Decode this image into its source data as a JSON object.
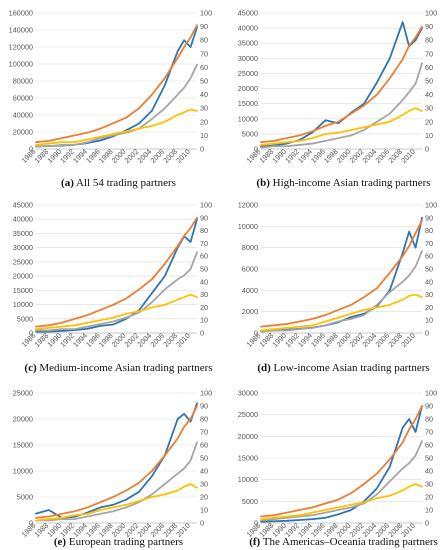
{
  "chart_data": [
    {
      "type": "line",
      "caption_letter": "(a)",
      "caption_text": "All 54 trading partners",
      "x": [
        1986,
        1988,
        1990,
        1992,
        1994,
        1996,
        1998,
        2000,
        2002,
        2004,
        2006,
        2008,
        2009,
        2010,
        2011
      ],
      "xticks": [
        1986,
        1988,
        1990,
        1992,
        1994,
        1996,
        1998,
        2000,
        2002,
        2004,
        2006,
        2008,
        2010
      ],
      "y_left": {
        "min": 0,
        "max": 160000,
        "ticks": [
          0,
          20000,
          40000,
          60000,
          80000,
          100000,
          120000,
          140000,
          160000
        ]
      },
      "y_right": {
        "min": 0,
        "max": 100,
        "ticks": [
          0,
          10,
          20,
          30,
          40,
          50,
          60,
          70,
          80,
          90,
          100
        ]
      },
      "series": [
        {
          "color": "#2e75b6",
          "axis": "left",
          "values": [
            3000,
            3500,
            4000,
            5000,
            7000,
            10000,
            15000,
            22000,
            30000,
            45000,
            75000,
            115000,
            128000,
            120000,
            143000
          ]
        },
        {
          "color": "#ed7d31",
          "axis": "right",
          "values": [
            5,
            6,
            8,
            10,
            12,
            15,
            19,
            23,
            30,
            40,
            52,
            67,
            75,
            82,
            91
          ]
        },
        {
          "color": "#a5a5a5",
          "axis": "right",
          "values": [
            2,
            2,
            3,
            3,
            5,
            8,
            10,
            12,
            15,
            22,
            30,
            40,
            45,
            52,
            62
          ]
        },
        {
          "color": "#ffc000",
          "axis": "right",
          "values": [
            3,
            4,
            5,
            5,
            7,
            9,
            11,
            13,
            15,
            17,
            20,
            25,
            27,
            29,
            28
          ]
        }
      ]
    },
    {
      "type": "line",
      "caption_letter": "(b)",
      "caption_text": "High-income Asian trading partners",
      "x": [
        1986,
        1988,
        1990,
        1992,
        1994,
        1996,
        1998,
        2000,
        2002,
        2004,
        2006,
        2008,
        2009,
        2010,
        2011
      ],
      "xticks": [
        1986,
        1988,
        1990,
        1992,
        1994,
        1996,
        1998,
        2000,
        2002,
        2004,
        2006,
        2008,
        2010
      ],
      "y_left": {
        "min": 0,
        "max": 45000,
        "ticks": [
          0,
          5000,
          10000,
          15000,
          20000,
          25000,
          30000,
          35000,
          40000,
          45000
        ]
      },
      "y_right": {
        "min": 0,
        "max": 100,
        "ticks": [
          0,
          10,
          20,
          30,
          40,
          50,
          60,
          70,
          80,
          90,
          100
        ]
      },
      "series": [
        {
          "color": "#2e75b6",
          "axis": "left",
          "values": [
            800,
            1200,
            1800,
            3000,
            5500,
            9500,
            8500,
            12000,
            15000,
            22000,
            30000,
            42000,
            34000,
            36000,
            40000
          ]
        },
        {
          "color": "#ed7d31",
          "axis": "right",
          "values": [
            5,
            6,
            8,
            10,
            13,
            17,
            20,
            26,
            32,
            40,
            52,
            66,
            76,
            82,
            90
          ]
        },
        {
          "color": "#a5a5a5",
          "axis": "right",
          "values": [
            1,
            2,
            2,
            3,
            4,
            6,
            8,
            10,
            14,
            20,
            26,
            36,
            42,
            48,
            63
          ]
        },
        {
          "color": "#ffc000",
          "axis": "right",
          "values": [
            3,
            4,
            5,
            6,
            8,
            11,
            12,
            14,
            16,
            18,
            20,
            25,
            28,
            30,
            28
          ]
        }
      ]
    },
    {
      "type": "line",
      "caption_letter": "(c)",
      "caption_text": "Medium-income Asian trading partners",
      "x": [
        1986,
        1988,
        1990,
        1992,
        1994,
        1996,
        1998,
        2000,
        2002,
        2004,
        2006,
        2008,
        2009,
        2010,
        2011
      ],
      "xticks": [
        1986,
        1988,
        1990,
        1992,
        1994,
        1996,
        1998,
        2000,
        2002,
        2004,
        2006,
        2008,
        2010
      ],
      "y_left": {
        "min": 0,
        "max": 45000,
        "ticks": [
          0,
          5000,
          10000,
          15000,
          20000,
          25000,
          30000,
          35000,
          40000,
          45000
        ]
      },
      "y_right": {
        "min": 0,
        "max": 100,
        "ticks": [
          0,
          10,
          20,
          30,
          40,
          50,
          60,
          70,
          80,
          90,
          100
        ]
      },
      "series": [
        {
          "color": "#2e75b6",
          "axis": "left",
          "values": [
            400,
            500,
            700,
            1000,
            1500,
            2500,
            3000,
            5000,
            8000,
            14000,
            20000,
            30000,
            34000,
            32000,
            40000
          ]
        },
        {
          "color": "#ed7d31",
          "axis": "right",
          "values": [
            5,
            6,
            8,
            11,
            14,
            18,
            22,
            27,
            34,
            42,
            54,
            68,
            76,
            82,
            90
          ]
        },
        {
          "color": "#a5a5a5",
          "axis": "right",
          "values": [
            2,
            2,
            3,
            3,
            5,
            7,
            9,
            12,
            16,
            24,
            34,
            42,
            45,
            50,
            63
          ]
        },
        {
          "color": "#ffc000",
          "axis": "right",
          "values": [
            3,
            4,
            5,
            6,
            8,
            10,
            12,
            15,
            17,
            20,
            22,
            26,
            28,
            30,
            28
          ]
        }
      ]
    },
    {
      "type": "line",
      "caption_letter": "(d)",
      "caption_text": "Low-income Asian trading partners",
      "x": [
        1986,
        1988,
        1990,
        1992,
        1994,
        1996,
        1998,
        2000,
        2002,
        2004,
        2006,
        2008,
        2009,
        2010,
        2011
      ],
      "xticks": [
        1986,
        1988,
        1990,
        1992,
        1994,
        1996,
        1998,
        2000,
        2002,
        2004,
        2006,
        2008,
        2010
      ],
      "y_left": {
        "min": 0,
        "max": 12000,
        "ticks": [
          0,
          2000,
          4000,
          6000,
          8000,
          10000,
          12000
        ]
      },
      "y_right": {
        "min": 0,
        "max": 100,
        "ticks": [
          0,
          10,
          20,
          30,
          40,
          50,
          60,
          70,
          80,
          90,
          100
        ]
      },
      "series": [
        {
          "color": "#2e75b6",
          "axis": "left",
          "values": [
            200,
            250,
            300,
            400,
            500,
            700,
            1000,
            1500,
            1800,
            2500,
            4000,
            7500,
            9500,
            8000,
            10800
          ]
        },
        {
          "color": "#ed7d31",
          "axis": "right",
          "values": [
            5,
            6,
            7,
            9,
            11,
            14,
            18,
            22,
            28,
            35,
            47,
            60,
            68,
            78,
            88
          ]
        },
        {
          "color": "#a5a5a5",
          "axis": "right",
          "values": [
            1,
            2,
            2,
            3,
            4,
            6,
            9,
            11,
            14,
            22,
            32,
            40,
            45,
            52,
            64
          ]
        },
        {
          "color": "#ffc000",
          "axis": "right",
          "values": [
            2,
            3,
            4,
            5,
            6,
            9,
            12,
            15,
            18,
            20,
            22,
            26,
            29,
            30,
            28
          ]
        }
      ]
    },
    {
      "type": "line",
      "caption_letter": "(e)",
      "caption_text": "European trading partners",
      "x": [
        1986,
        1988,
        1990,
        1992,
        1994,
        1996,
        1998,
        2000,
        2002,
        2004,
        2006,
        2008,
        2009,
        2010,
        2011
      ],
      "xticks": [
        1986,
        1988,
        1990,
        1992,
        1994,
        1996,
        1998,
        2000,
        2002,
        2004,
        2006,
        2008,
        2010
      ],
      "y_left": {
        "min": 0,
        "max": 25000,
        "ticks": [
          0,
          5000,
          10000,
          15000,
          20000,
          25000
        ]
      },
      "y_right": {
        "min": 0,
        "max": 100,
        "ticks": [
          0,
          10,
          20,
          30,
          40,
          50,
          60,
          70,
          80,
          90,
          100
        ]
      },
      "series": [
        {
          "color": "#2e75b6",
          "axis": "left",
          "values": [
            1800,
            2500,
            1000,
            1200,
            2000,
            3000,
            3500,
            4500,
            6000,
            9000,
            13000,
            20000,
            21000,
            19500,
            23000
          ]
        },
        {
          "color": "#ed7d31",
          "axis": "right",
          "values": [
            4,
            5,
            7,
            9,
            12,
            16,
            20,
            25,
            31,
            40,
            52,
            65,
            74,
            80,
            90
          ]
        },
        {
          "color": "#a5a5a5",
          "axis": "right",
          "values": [
            2,
            2,
            3,
            3,
            5,
            7,
            9,
            12,
            16,
            22,
            30,
            38,
            42,
            48,
            62
          ]
        },
        {
          "color": "#ffc000",
          "axis": "right",
          "values": [
            2,
            3,
            4,
            6,
            7,
            10,
            12,
            14,
            17,
            20,
            22,
            25,
            28,
            30,
            27
          ]
        }
      ]
    },
    {
      "type": "line",
      "caption_letter": "(f)",
      "caption_text": "The Americas–Oceania trading partners",
      "x": [
        1986,
        1988,
        1990,
        1992,
        1994,
        1996,
        1998,
        2000,
        2002,
        2004,
        2006,
        2008,
        2009,
        2010,
        2011
      ],
      "xticks": [
        1986,
        1988,
        1990,
        1992,
        1994,
        1996,
        1998,
        2000,
        2002,
        2004,
        2006,
        2008,
        2010
      ],
      "y_left": {
        "min": 0,
        "max": 30000,
        "ticks": [
          0,
          5000,
          10000,
          15000,
          20000,
          25000,
          30000
        ]
      },
      "y_right": {
        "min": 0,
        "max": 100,
        "ticks": [
          0,
          10,
          20,
          30,
          40,
          50,
          60,
          70,
          80,
          90,
          100
        ]
      },
      "series": [
        {
          "color": "#2e75b6",
          "axis": "left",
          "values": [
            300,
            400,
            500,
            700,
            900,
            1200,
            2000,
            3000,
            5000,
            8000,
            13000,
            22000,
            24000,
            21000,
            27000
          ]
        },
        {
          "color": "#ed7d31",
          "axis": "right",
          "values": [
            5,
            6,
            8,
            10,
            12,
            15,
            18,
            23,
            30,
            38,
            49,
            62,
            72,
            80,
            90
          ]
        },
        {
          "color": "#a5a5a5",
          "axis": "right",
          "values": [
            2,
            3,
            4,
            5,
            6,
            8,
            10,
            12,
            15,
            22,
            32,
            42,
            46,
            52,
            63
          ]
        },
        {
          "color": "#ffc000",
          "axis": "right",
          "values": [
            3,
            4,
            5,
            6,
            8,
            10,
            12,
            14,
            16,
            19,
            21,
            25,
            28,
            30,
            28
          ]
        }
      ]
    }
  ]
}
